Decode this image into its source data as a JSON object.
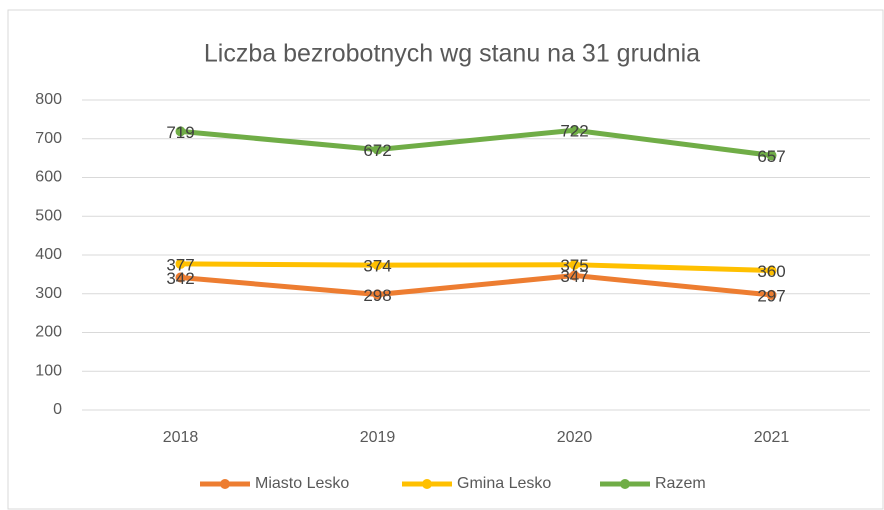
{
  "chart_data": {
    "type": "line",
    "title": "Liczba bezrobotnych wg stanu na 31 grudnia",
    "categories": [
      "2018",
      "2019",
      "2020",
      "2021"
    ],
    "series": [
      {
        "name": "Miasto Lesko",
        "color": "#ED7D31",
        "values": [
          342,
          298,
          347,
          297
        ]
      },
      {
        "name": "Gmina Lesko",
        "color": "#FFC000",
        "values": [
          377,
          374,
          375,
          360
        ]
      },
      {
        "name": "Razem",
        "color": "#70AD47",
        "values": [
          719,
          672,
          722,
          657
        ]
      }
    ],
    "ylim": [
      0,
      800
    ],
    "yticks": [
      0,
      100,
      200,
      300,
      400,
      500,
      600,
      700,
      800
    ],
    "grid": true,
    "legend": "bottom"
  }
}
